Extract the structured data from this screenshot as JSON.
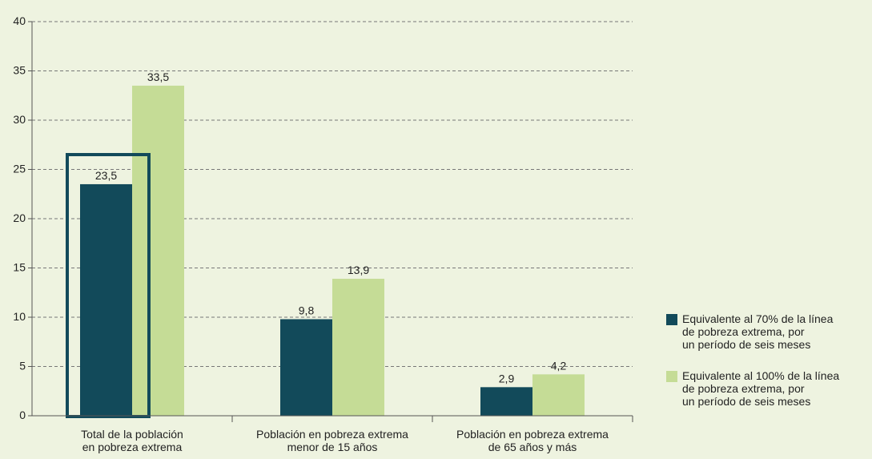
{
  "chart_data": {
    "type": "bar",
    "categories": [
      "Total de la población\nen pobreza extrema",
      "Población en pobreza extrema\nmenor de 15 años",
      "Población en pobreza extrema\nde 65 años y más"
    ],
    "series": [
      {
        "name": "Equivalente al 70% de la línea\nde pobreza extrema, por\nun período de seis meses",
        "color": "#124a5a",
        "values": [
          23.5,
          9.8,
          2.9
        ],
        "value_labels": [
          "23,5",
          "9,8",
          "2,9"
        ]
      },
      {
        "name": "Equivalente al 100% de la línea\nde pobreza extrema, por\nun período de seis meses",
        "color": "#c5dc96",
        "values": [
          33.5,
          13.9,
          4.2
        ],
        "value_labels": [
          "33,5",
          "13,9",
          "4,2"
        ]
      }
    ],
    "ylim": [
      0,
      40
    ],
    "yticks": [
      0,
      5,
      10,
      15,
      20,
      25,
      30,
      35,
      40
    ],
    "grid": true,
    "legend": "right"
  }
}
